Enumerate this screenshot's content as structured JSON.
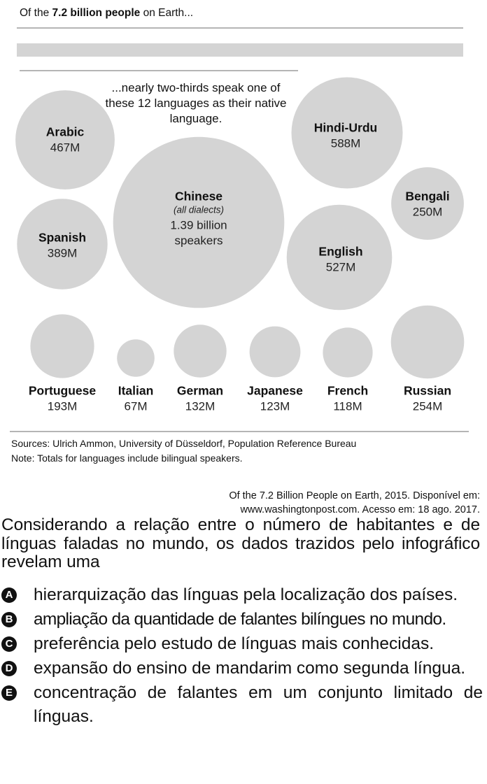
{
  "header": {
    "title_prefix": "Of the ",
    "title_bold": "7.2 billion people",
    "title_suffix": " on Earth..."
  },
  "intro_text": "...nearly two-thirds speak one of these 12 languages as their native language.",
  "colors": {
    "circle": "#d4d4d4",
    "rule": "#b5b5b5",
    "text": "#111111"
  },
  "chart_data": {
    "type": "bubble",
    "unit": "millions of speakers",
    "languages": [
      {
        "name": "Chinese",
        "sub": "(all dialects)",
        "value": 1390,
        "label": "1.39 billion",
        "label2": "speakers"
      },
      {
        "name": "Hindi-Urdu",
        "value": 588,
        "label": "588M"
      },
      {
        "name": "English",
        "value": 527,
        "label": "527M"
      },
      {
        "name": "Arabic",
        "value": 467,
        "label": "467M"
      },
      {
        "name": "Spanish",
        "value": 389,
        "label": "389M"
      },
      {
        "name": "Russian",
        "value": 254,
        "label": "254M"
      },
      {
        "name": "Bengali",
        "value": 250,
        "label": "250M"
      },
      {
        "name": "Portuguese",
        "value": 193,
        "label": "193M"
      },
      {
        "name": "German",
        "value": 132,
        "label": "132M"
      },
      {
        "name": "Japanese",
        "value": 123,
        "label": "123M"
      },
      {
        "name": "French",
        "value": 118,
        "label": "118M"
      },
      {
        "name": "Italian",
        "value": 67,
        "label": "67M"
      }
    ]
  },
  "sources": "Sources: Ulrich Ammon, University of Düsseldorf, Population Reference Bureau",
  "note": "Note: Totals for languages include bilingual speakers.",
  "credit_line1": "Of the 7.2 Billion People on Earth, 2015. Disponível em:",
  "credit_line2": "www.washingtonpost.com. Acesso em: 18 ago. 2017.",
  "question": "Considerando a relação entre o número de habitantes e de línguas faladas no mundo, os dados trazidos pelo infográfico revelam uma",
  "options": [
    {
      "letter": "A",
      "text": "hierarquização das línguas pela localização dos países."
    },
    {
      "letter": "B",
      "text": "ampliação da quantidade de falantes bilíngues no mundo."
    },
    {
      "letter": "C",
      "text": "preferência pelo estudo de línguas mais conhecidas."
    },
    {
      "letter": "D",
      "text": "expansão do ensino de mandarim como segunda língua."
    },
    {
      "letter": "E",
      "text": "concentração de falantes em um conjunto limitado de línguas."
    }
  ]
}
